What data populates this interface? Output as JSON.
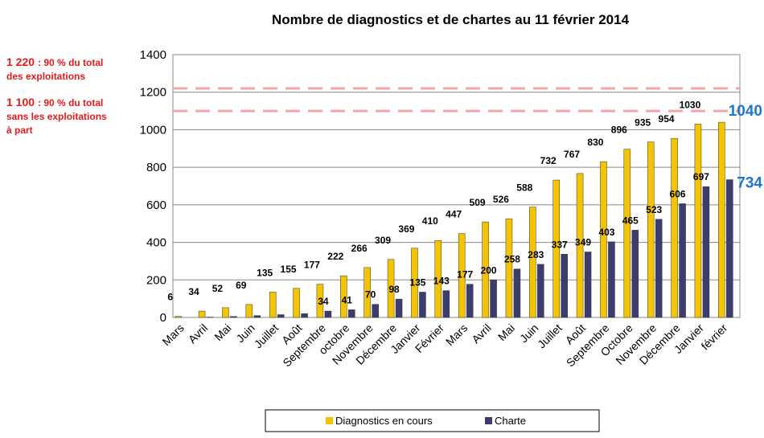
{
  "chart_data": {
    "type": "bar",
    "title": "Nombre de diagnostics et de chartes au 11 février 2014",
    "categories": [
      "Mars",
      "Avril",
      "Mai",
      "Juin",
      "Juillet",
      "Août",
      "Septembre",
      "octobre",
      "Novembre",
      "Décembre",
      "Janvier",
      "Février",
      "Mars",
      "Avril",
      "Mai",
      "Juin",
      "Juillet",
      "Août",
      "Septembre",
      "Octobre",
      "Novembre",
      "Décembre",
      "Janvier",
      "février"
    ],
    "series": [
      {
        "name": "Diagnostics en cours",
        "color": "#f5c400",
        "values": [
          6,
          34,
          52,
          69,
          135,
          155,
          177,
          222,
          266,
          309,
          369,
          410,
          447,
          509,
          526,
          588,
          732,
          767,
          830,
          896,
          935,
          954,
          1030,
          1040
        ],
        "value_labels": [
          "6",
          "34",
          "52",
          "69",
          "135",
          "155",
          "177",
          "222",
          "266",
          "309",
          "369",
          "410",
          "447",
          "509",
          "526",
          "588",
          "732",
          "767",
          "830",
          "896",
          "935",
          "954",
          "1030",
          null
        ]
      },
      {
        "name": "Charte",
        "color": "#3c3c6e",
        "values": [
          0,
          2,
          5,
          10,
          15,
          20,
          34,
          41,
          70,
          98,
          135,
          143,
          177,
          200,
          258,
          283,
          337,
          349,
          403,
          465,
          523,
          606,
          697,
          734
        ],
        "value_labels": [
          null,
          null,
          null,
          null,
          null,
          null,
          "34",
          "41",
          "70",
          "98",
          "135",
          "143",
          "177",
          "200",
          "258",
          "283",
          "337",
          "349",
          "403",
          "465",
          "523",
          "606",
          "697",
          null
        ]
      }
    ],
    "ylim": [
      0,
      1400
    ],
    "yticks": [
      0,
      200,
      400,
      600,
      800,
      1000,
      1200,
      1400
    ],
    "grid": true,
    "annotations": [
      {
        "text": "1040",
        "value": 1040,
        "color": "#1f78c8"
      },
      {
        "text": "734",
        "value": 734,
        "color": "#1f78c8"
      }
    ],
    "reference_lines": [
      {
        "value": 1220,
        "label": "1 220",
        "text_lines": [
          ": 90 % du total",
          "des exploitations"
        ],
        "color": "#f4a6a6"
      },
      {
        "value": 1100,
        "label": "1 100",
        "text_lines": [
          ": 90 % du total",
          "sans les exploitations",
          "à part"
        ],
        "color": "#f4a6a6"
      }
    ]
  }
}
